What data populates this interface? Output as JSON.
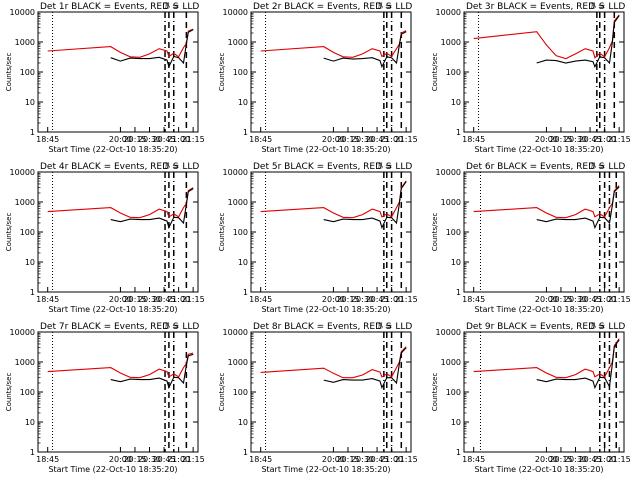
{
  "colors": {
    "events": "#000000",
    "lld": "#e00000",
    "background": "#ffffff"
  },
  "shared": {
    "ylabel": "Counts/sec",
    "xlabel": "Start Time (22-Oct-10 18:35:20)",
    "x_tick_labels": [
      "18:45",
      "20:00",
      "20:15",
      "20:30",
      "20:45",
      "21:00",
      "21:15"
    ],
    "y_tick_labels": [
      "1",
      "10",
      "100",
      "1000",
      "10000"
    ],
    "annotation": "ℬ S"
  },
  "chart_data": [
    {
      "type": "line",
      "title": "Det 1r BLACK = Events, RED = LLD",
      "ylim": [
        1,
        10000
      ],
      "yscale": "log",
      "x": [
        "18:45",
        "19:50",
        "20:00",
        "20:10",
        "20:20",
        "20:30",
        "20:40",
        "20:48",
        "20:50",
        "20:55",
        "21:00",
        "21:05",
        "21:08",
        "21:10",
        "21:15"
      ],
      "series": [
        {
          "name": "LLD",
          "color": "red",
          "values": [
            500,
            700,
            450,
            320,
            310,
            400,
            600,
            500,
            330,
            420,
            320,
            650,
            900,
            2300,
            2700
          ]
        },
        {
          "name": "Events",
          "color": "black",
          "values": [
            null,
            300,
            230,
            290,
            280,
            280,
            310,
            250,
            150,
            330,
            300,
            200,
            900,
            2100,
            2600
          ]
        }
      ],
      "vlines": [
        "18:50",
        "20:46",
        "20:50",
        "20:55",
        "21:08"
      ]
    },
    {
      "type": "line",
      "title": "Det 2r BLACK = Events, RED = LLD",
      "ylim": [
        1,
        10000
      ],
      "yscale": "log",
      "x": [
        "18:45",
        "19:50",
        "20:00",
        "20:10",
        "20:20",
        "20:30",
        "20:40",
        "20:48",
        "20:50",
        "20:55",
        "21:00",
        "21:05",
        "21:08",
        "21:10",
        "21:15"
      ],
      "series": [
        {
          "name": "LLD",
          "color": "red",
          "values": [
            500,
            700,
            450,
            320,
            310,
            400,
            600,
            500,
            330,
            420,
            330,
            600,
            850,
            2000,
            2400
          ]
        },
        {
          "name": "Events",
          "color": "black",
          "values": [
            null,
            290,
            230,
            290,
            270,
            280,
            300,
            240,
            150,
            320,
            300,
            200,
            800,
            1800,
            2200
          ]
        }
      ],
      "vlines": [
        "18:50",
        "20:52",
        "20:55",
        "21:00",
        "21:10"
      ]
    },
    {
      "type": "line",
      "title": "Det 3r BLACK = Events, RED = LLD",
      "ylim": [
        1,
        10000
      ],
      "yscale": "log",
      "x": [
        "18:45",
        "19:50",
        "20:00",
        "20:10",
        "20:20",
        "20:30",
        "20:40",
        "20:48",
        "20:50",
        "20:55",
        "21:00",
        "21:05",
        "21:08",
        "21:10",
        "21:15"
      ],
      "series": [
        {
          "name": "LLD",
          "color": "red",
          "values": [
            1300,
            2200,
            800,
            350,
            280,
            400,
            600,
            500,
            300,
            420,
            320,
            650,
            1100,
            5000,
            8000
          ]
        },
        {
          "name": "Events",
          "color": "black",
          "values": [
            null,
            200,
            250,
            240,
            200,
            230,
            250,
            220,
            150,
            320,
            300,
            200,
            1000,
            4500,
            7500
          ]
        }
      ],
      "vlines": [
        "18:50",
        "20:52",
        "20:55",
        "21:00",
        "21:10"
      ]
    },
    {
      "type": "line",
      "title": "Det 4r BLACK = Events, RED = LLD",
      "ylim": [
        1,
        10000
      ],
      "yscale": "log",
      "x": [
        "18:45",
        "19:50",
        "20:00",
        "20:10",
        "20:20",
        "20:30",
        "20:40",
        "20:48",
        "20:50",
        "20:55",
        "21:00",
        "21:05",
        "21:08",
        "21:10",
        "21:15"
      ],
      "series": [
        {
          "name": "LLD",
          "color": "red",
          "values": [
            480,
            650,
            430,
            310,
            300,
            380,
            580,
            480,
            320,
            400,
            320,
            650,
            900,
            2400,
            3000
          ]
        },
        {
          "name": "Events",
          "color": "black",
          "values": [
            null,
            260,
            220,
            270,
            260,
            260,
            290,
            230,
            140,
            310,
            300,
            200,
            850,
            2200,
            2800
          ]
        }
      ],
      "vlines": [
        "18:50",
        "20:46",
        "20:50",
        "20:55",
        "21:08"
      ]
    },
    {
      "type": "line",
      "title": "Det 5r BLACK = Events, RED = LLD",
      "ylim": [
        1,
        10000
      ],
      "yscale": "log",
      "x": [
        "18:45",
        "19:50",
        "20:00",
        "20:10",
        "20:20",
        "20:30",
        "20:40",
        "20:48",
        "20:50",
        "20:55",
        "21:00",
        "21:05",
        "21:08",
        "21:10",
        "21:15"
      ],
      "series": [
        {
          "name": "LLD",
          "color": "red",
          "values": [
            480,
            650,
            430,
            310,
            300,
            380,
            580,
            480,
            320,
            400,
            320,
            650,
            1000,
            3000,
            5000
          ]
        },
        {
          "name": "Events",
          "color": "black",
          "values": [
            null,
            260,
            220,
            270,
            260,
            260,
            290,
            230,
            140,
            310,
            300,
            200,
            900,
            2800,
            4800
          ]
        }
      ],
      "vlines": [
        "18:50",
        "20:52",
        "20:55",
        "21:00",
        "21:10"
      ]
    },
    {
      "type": "line",
      "title": "Det 6r BLACK = Events, RED = LLD",
      "ylim": [
        1,
        10000
      ],
      "yscale": "log",
      "x": [
        "18:45",
        "19:50",
        "20:00",
        "20:10",
        "20:20",
        "20:30",
        "20:40",
        "20:48",
        "20:50",
        "20:55",
        "21:00",
        "21:05",
        "21:08",
        "21:10",
        "21:15"
      ],
      "series": [
        {
          "name": "LLD",
          "color": "red",
          "values": [
            480,
            650,
            430,
            310,
            300,
            380,
            580,
            480,
            320,
            400,
            320,
            650,
            900,
            2400,
            3500
          ]
        },
        {
          "name": "Events",
          "color": "black",
          "values": [
            null,
            260,
            220,
            270,
            260,
            260,
            290,
            230,
            140,
            310,
            300,
            200,
            800,
            2200,
            3200
          ]
        }
      ],
      "vlines": [
        "18:52",
        "20:55",
        "21:00",
        "21:05",
        "21:12"
      ]
    },
    {
      "type": "line",
      "title": "Det 7r BLACK = Events, RED = LLD",
      "ylim": [
        1,
        10000
      ],
      "yscale": "log",
      "x": [
        "18:45",
        "19:50",
        "20:00",
        "20:10",
        "20:20",
        "20:30",
        "20:40",
        "20:48",
        "20:50",
        "20:55",
        "21:00",
        "21:05",
        "21:08",
        "21:10",
        "21:15"
      ],
      "series": [
        {
          "name": "LLD",
          "color": "red",
          "values": [
            480,
            650,
            430,
            310,
            300,
            380,
            580,
            480,
            320,
            400,
            320,
            650,
            900,
            1800,
            2000
          ]
        },
        {
          "name": "Events",
          "color": "black",
          "values": [
            null,
            260,
            220,
            270,
            260,
            260,
            290,
            230,
            140,
            310,
            300,
            200,
            800,
            1600,
            1800
          ]
        }
      ],
      "vlines": [
        "18:50",
        "20:46",
        "20:50",
        "20:55",
        "21:08"
      ]
    },
    {
      "type": "line",
      "title": "Det 8r BLACK = Events, RED = LLD",
      "ylim": [
        1,
        10000
      ],
      "yscale": "log",
      "x": [
        "18:45",
        "19:50",
        "20:00",
        "20:10",
        "20:20",
        "20:30",
        "20:40",
        "20:48",
        "20:50",
        "20:55",
        "21:00",
        "21:05",
        "21:08",
        "21:10",
        "21:15"
      ],
      "series": [
        {
          "name": "LLD",
          "color": "red",
          "values": [
            450,
            620,
            420,
            300,
            300,
            370,
            560,
            460,
            320,
            400,
            320,
            650,
            1000,
            2200,
            3200
          ]
        },
        {
          "name": "Events",
          "color": "black",
          "values": [
            null,
            250,
            210,
            260,
            250,
            250,
            280,
            230,
            140,
            300,
            300,
            200,
            900,
            2000,
            3000
          ]
        }
      ],
      "vlines": [
        "18:50",
        "20:52",
        "20:55",
        "21:00",
        "21:10"
      ]
    },
    {
      "type": "line",
      "title": "Det 9r BLACK = Events, RED = LLD",
      "ylim": [
        1,
        10000
      ],
      "yscale": "log",
      "x": [
        "18:45",
        "19:50",
        "20:00",
        "20:10",
        "20:20",
        "20:30",
        "20:40",
        "20:48",
        "20:50",
        "20:55",
        "21:00",
        "21:05",
        "21:08",
        "21:10",
        "21:15"
      ],
      "series": [
        {
          "name": "LLD",
          "color": "red",
          "values": [
            480,
            650,
            430,
            310,
            300,
            380,
            580,
            480,
            320,
            400,
            320,
            650,
            1000,
            3500,
            6000
          ]
        },
        {
          "name": "Events",
          "color": "black",
          "values": [
            null,
            260,
            220,
            270,
            260,
            260,
            290,
            230,
            140,
            310,
            300,
            150,
            900,
            3200,
            5500
          ]
        }
      ],
      "vlines": [
        "18:52",
        "20:55",
        "21:00",
        "21:05",
        "21:12"
      ]
    }
  ]
}
